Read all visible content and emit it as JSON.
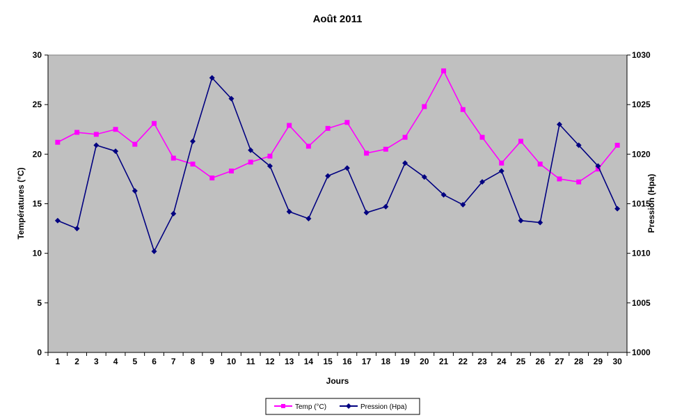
{
  "chart_data": {
    "type": "line",
    "title": "Août 2011",
    "xlabel": "Jours",
    "ylabel_left": "Températures  (°C)",
    "ylabel_right": "Pression (Hpa)",
    "ylim_left": [
      0,
      30
    ],
    "ylim_right": [
      1000,
      1030
    ],
    "yticks_left": [
      "0",
      "5",
      "10",
      "15",
      "20",
      "25",
      "30"
    ],
    "yticks_right": [
      "1000",
      "1005",
      "1010",
      "1015",
      "1020",
      "1025",
      "1030"
    ],
    "categories": [
      "1",
      "2",
      "3",
      "4",
      "5",
      "6",
      "7",
      "8",
      "9",
      "10",
      "11",
      "12",
      "13",
      "14",
      "15",
      "16",
      "17",
      "18",
      "19",
      "20",
      "21",
      "22",
      "23",
      "24",
      "25",
      "26",
      "27",
      "28",
      "29",
      "30"
    ],
    "grid": false,
    "legend_position": "bottom",
    "plot_background": "#c0c0c0",
    "series": [
      {
        "name": "Temp (°C)",
        "axis": "left",
        "color": "#ff00ff",
        "marker": "square",
        "values": [
          21.2,
          22.2,
          22.0,
          22.5,
          21.0,
          23.1,
          19.6,
          19.0,
          17.6,
          18.3,
          19.2,
          19.8,
          22.9,
          20.8,
          22.6,
          23.2,
          20.1,
          20.5,
          21.7,
          24.8,
          28.4,
          24.5,
          21.7,
          19.1,
          21.3,
          19.0,
          17.5,
          17.2,
          18.5,
          20.9
        ]
      },
      {
        "name": "Pression (Hpa)",
        "axis": "right",
        "color": "#000080",
        "marker": "diamond",
        "values": [
          1013.3,
          1012.5,
          1020.9,
          1020.3,
          1016.3,
          1010.2,
          1014.0,
          1021.3,
          1027.7,
          1025.6,
          1020.4,
          1018.8,
          1014.2,
          1013.5,
          1017.8,
          1018.6,
          1014.1,
          1014.7,
          1019.1,
          1017.7,
          1015.9,
          1014.9,
          1017.2,
          1018.3,
          1013.3,
          1013.1,
          1023.0,
          1020.9,
          1018.8,
          1014.5
        ]
      }
    ]
  }
}
